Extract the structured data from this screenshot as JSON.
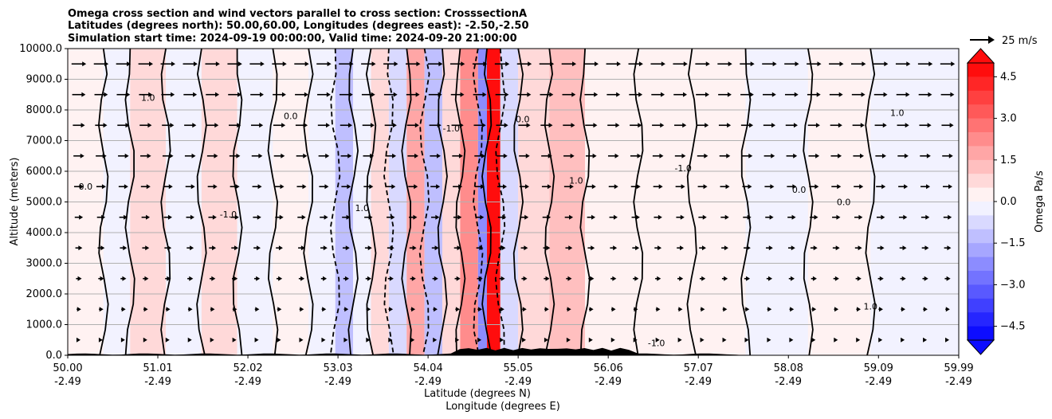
{
  "chart_data": {
    "type": "heatmap",
    "title": [
      "Omega cross section and wind vectors parallel to cross section: CrosssectionA",
      "Latitudes (degrees north): 50.00,60.00, Longitudes (degrees east): -2.50,-2.50",
      "Simulation start time: 2024-09-19 00:00:00, Valid time: 2024-09-20 21:00:00"
    ],
    "ylabel": "Altitude (meters)",
    "xlabel": "Latitude (degrees N)",
    "xlabel2": "Longitude (degrees E)",
    "ylim": [
      0,
      10000
    ],
    "xlim": [
      50.0,
      59.99
    ],
    "grid": "horizontal",
    "y_ticks": [
      "0.0",
      "1000.0",
      "2000.0",
      "3000.0",
      "4000.0",
      "5000.0",
      "6000.0",
      "7000.0",
      "8000.0",
      "9000.0",
      "10000.0"
    ],
    "y_tick_values": [
      0,
      1000,
      2000,
      3000,
      4000,
      5000,
      6000,
      7000,
      8000,
      9000,
      10000
    ],
    "x_tick_values": [
      50.0,
      51.01,
      52.02,
      53.03,
      54.04,
      55.05,
      56.06,
      57.07,
      58.08,
      59.09,
      59.99
    ],
    "x_tick_lat_labels": [
      "50.00",
      "51.01",
      "52.02",
      "53.03",
      "54.04",
      "55.05",
      "56.06",
      "57.07",
      "58.08",
      "59.09",
      "59.99"
    ],
    "x_tick_lon_labels": [
      "-2.49",
      "-2.49",
      "-2.49",
      "-2.49",
      "-2.49",
      "-2.49",
      "-2.49",
      "-2.49",
      "-2.49",
      "-2.49",
      "-2.49"
    ],
    "colorbar": {
      "label": "Omega Pa/s",
      "range": [
        -5,
        5
      ],
      "ticks": [
        "4.5",
        "3.0",
        "1.5",
        "0.0",
        "−1.5",
        "−3.0",
        "−4.5"
      ],
      "tick_values": [
        4.5,
        3.0,
        1.5,
        0.0,
        -1.5,
        -3.0,
        -4.5
      ],
      "colormap": "bwr",
      "extend": "both"
    },
    "vector_key": "25 m/s",
    "contour_labels": [
      "0.0",
      "1.0",
      "-1.0"
    ],
    "bands": [
      {
        "x0": 50.0,
        "x1": 50.4,
        "value": 0.2
      },
      {
        "x0": 50.4,
        "x1": 50.7,
        "value": -0.2
      },
      {
        "x0": 50.7,
        "x1": 51.1,
        "value": 0.5
      },
      {
        "x0": 51.1,
        "x1": 51.5,
        "value": -0.3
      },
      {
        "x0": 51.5,
        "x1": 51.9,
        "value": 0.6
      },
      {
        "x0": 51.9,
        "x1": 52.3,
        "value": -0.3
      },
      {
        "x0": 52.3,
        "x1": 52.7,
        "value": 0.4
      },
      {
        "x0": 52.7,
        "x1": 53.0,
        "value": -0.2
      },
      {
        "x0": 53.0,
        "x1": 53.2,
        "value": -1.3
      },
      {
        "x0": 53.2,
        "x1": 53.4,
        "value": -0.3
      },
      {
        "x0": 53.4,
        "x1": 53.6,
        "value": 0.6
      },
      {
        "x0": 53.6,
        "x1": 53.8,
        "value": -0.6
      },
      {
        "x0": 53.8,
        "x1": 54.0,
        "value": 1.8
      },
      {
        "x0": 54.0,
        "x1": 54.2,
        "value": -1.4
      },
      {
        "x0": 54.2,
        "x1": 54.4,
        "value": 0.8
      },
      {
        "x0": 54.4,
        "x1": 54.6,
        "value": 2.2
      },
      {
        "x0": 54.6,
        "x1": 54.7,
        "value": -2.5
      },
      {
        "x0": 54.7,
        "x1": 54.85,
        "value": 4.5
      },
      {
        "x0": 54.85,
        "x1": 55.05,
        "value": -0.6
      },
      {
        "x0": 55.05,
        "x1": 55.4,
        "value": 0.5
      },
      {
        "x0": 55.4,
        "x1": 55.8,
        "value": 1.1
      },
      {
        "x0": 55.8,
        "x1": 56.4,
        "value": 0.3
      },
      {
        "x0": 56.4,
        "x1": 57.0,
        "value": 0.2
      },
      {
        "x0": 57.0,
        "x1": 57.6,
        "value": 0.1
      },
      {
        "x0": 57.6,
        "x1": 58.3,
        "value": -0.1
      },
      {
        "x0": 58.3,
        "x1": 59.0,
        "value": 0.1
      },
      {
        "x0": 59.0,
        "x1": 59.99,
        "value": -0.1
      }
    ]
  }
}
